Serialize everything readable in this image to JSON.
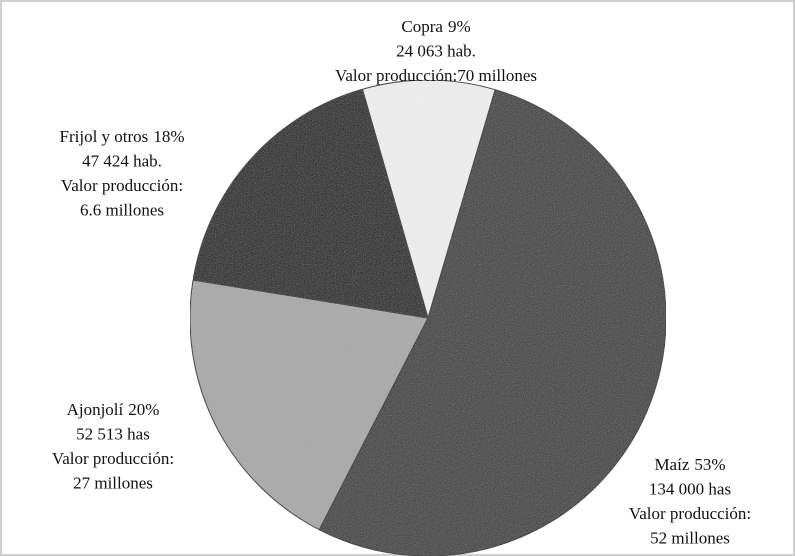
{
  "chart_data": {
    "type": "pie",
    "categories": [
      "Copra",
      "Maíz",
      "Ajonjolí",
      "Frijol y otros"
    ],
    "values": [
      9,
      53,
      20,
      18
    ],
    "value_labels": [
      "9%",
      "53%",
      "20%",
      "18%"
    ],
    "details": [
      [
        "24 063 hab.",
        "Valor producción:70 millones"
      ],
      [
        "134 000 has",
        "Valor producción:",
        "52 millones"
      ],
      [
        "52 513 has",
        "Valor producción:",
        "27 millones"
      ],
      [
        "47 424 hab.",
        "Valor producción:",
        "6.6 millones"
      ]
    ],
    "colors": [
      "#f1f1f1",
      "#3a3a3a",
      "#a9a9a9",
      "#161616"
    ]
  }
}
